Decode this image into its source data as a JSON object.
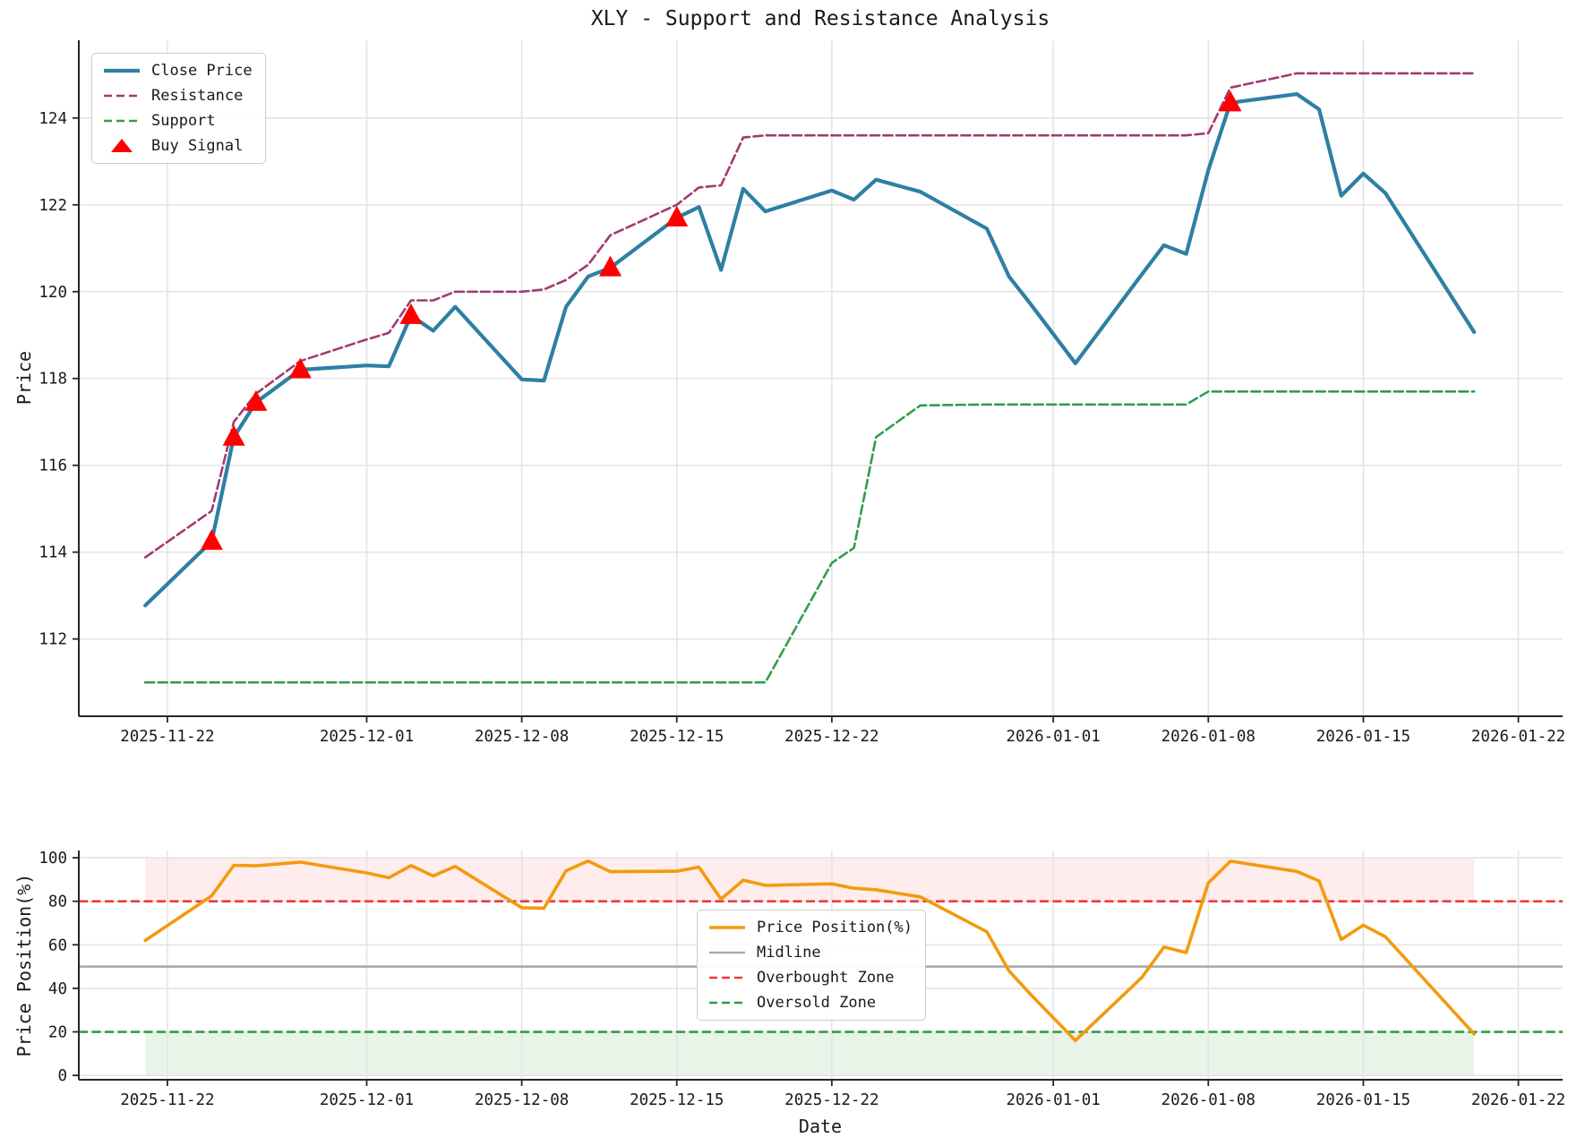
{
  "title": "XLY - Support and Resistance Analysis",
  "colors": {
    "close": "#2e7fa4",
    "resistance": "#a13a72",
    "support": "#2f9e4e",
    "buy_signal": "#ff0000",
    "position": "#f39a0d",
    "midline": "#aaaaaa",
    "overbought": "#ee3b3b",
    "oversold": "#2e9e46",
    "overbought_fill": "#ff6b6b",
    "oversold_fill": "#7cc47c",
    "grid": "#e4e4e4",
    "spine": "#262626"
  },
  "chart_data": [
    {
      "type": "line",
      "title": "XLY - Support and Resistance Analysis",
      "ylabel": "Price",
      "ylim": [
        110.2,
        125.8
      ],
      "y_ticks": [
        112,
        114,
        116,
        118,
        120,
        122,
        124
      ],
      "x_ticks": [
        "2025-11-22",
        "2025-12-01",
        "2025-12-08",
        "2025-12-15",
        "2025-12-22",
        "2026-01-01",
        "2026-01-08",
        "2026-01-15",
        "2026-01-22"
      ],
      "dates": [
        "2025-11-21",
        "2025-11-24",
        "2025-11-25",
        "2025-11-26",
        "2025-11-28",
        "2025-12-01",
        "2025-12-02",
        "2025-12-03",
        "2025-12-04",
        "2025-12-05",
        "2025-12-08",
        "2025-12-09",
        "2025-12-10",
        "2025-12-11",
        "2025-12-12",
        "2025-12-15",
        "2025-12-16",
        "2025-12-17",
        "2025-12-18",
        "2025-12-19",
        "2025-12-22",
        "2025-12-23",
        "2025-12-24",
        "2025-12-26",
        "2025-12-29",
        "2025-12-30",
        "2025-12-31",
        "2026-01-02",
        "2026-01-05",
        "2026-01-06",
        "2026-01-07",
        "2026-01-08",
        "2026-01-09",
        "2026-01-12",
        "2026-01-13",
        "2026-01-14",
        "2026-01-15",
        "2026-01-16",
        "2026-01-20"
      ],
      "series": [
        {
          "name": "Close Price",
          "style": "solid",
          "color": "#2e7fa4",
          "width": 4.2,
          "values": [
            112.77,
            114.25,
            116.65,
            117.45,
            118.2,
            118.3,
            118.28,
            119.45,
            119.1,
            119.65,
            117.98,
            117.95,
            119.65,
            120.35,
            120.55,
            121.7,
            121.95,
            120.5,
            122.37,
            121.85,
            122.33,
            122.12,
            122.58,
            122.3,
            121.45,
            120.35,
            119.7,
            118.35,
            120.4,
            121.07,
            120.87,
            122.8,
            124.35,
            124.55,
            124.2,
            122.21,
            122.72,
            122.27,
            119.07
          ]
        },
        {
          "name": "Resistance",
          "style": "dashed",
          "color": "#a13a72",
          "width": 2.6,
          "values": [
            113.88,
            114.95,
            117.0,
            117.65,
            118.4,
            118.9,
            119.05,
            119.8,
            119.8,
            120.0,
            120.0,
            120.05,
            120.27,
            120.62,
            121.3,
            122.0,
            122.4,
            122.45,
            123.55,
            123.6,
            123.6,
            123.6,
            123.6,
            123.6,
            123.6,
            123.6,
            123.6,
            123.6,
            123.6,
            123.6,
            123.6,
            123.65,
            124.7,
            125.03,
            125.03,
            125.03,
            125.03,
            125.03,
            125.03
          ]
        },
        {
          "name": "Support",
          "style": "dashed",
          "color": "#2f9e4e",
          "width": 2.6,
          "values": [
            111,
            111,
            111,
            111,
            111,
            111,
            111,
            111,
            111,
            111,
            111,
            111,
            111,
            111,
            111,
            111,
            111,
            111,
            111,
            111,
            113.75,
            114.1,
            116.65,
            117.38,
            117.4,
            117.4,
            117.4,
            117.4,
            117.4,
            117.4,
            117.4,
            117.7,
            117.7,
            117.7,
            117.7,
            117.7,
            117.7,
            117.7,
            117.7
          ]
        }
      ],
      "markers": {
        "name": "Buy Signal",
        "symbol": "triangle-up",
        "color": "#ff0000",
        "dates": [
          "2025-11-24",
          "2025-11-25",
          "2025-11-26",
          "2025-11-28",
          "2025-12-03",
          "2025-12-12",
          "2025-12-15",
          "2026-01-09"
        ],
        "values": [
          114.25,
          116.65,
          117.45,
          118.2,
          119.45,
          120.55,
          121.7,
          124.35
        ]
      },
      "legend": [
        {
          "label": "Close Price",
          "swatch": "line",
          "color": "#2e7fa4",
          "width": 4.2
        },
        {
          "label": "Resistance",
          "swatch": "dashed",
          "color": "#a13a72",
          "width": 2.6
        },
        {
          "label": "Support",
          "swatch": "dashed",
          "color": "#2f9e4e",
          "width": 2.6
        },
        {
          "label": "Buy Signal",
          "swatch": "triangle",
          "color": "#ff0000"
        }
      ],
      "legend_position": "upper left"
    },
    {
      "type": "line",
      "ylabel": "Price Position(%)",
      "xlabel": "Date",
      "ylim": [
        0,
        100
      ],
      "y_ticks": [
        0,
        20,
        40,
        60,
        80,
        100
      ],
      "x_ticks": [
        "2025-11-22",
        "2025-12-01",
        "2025-12-08",
        "2025-12-15",
        "2025-12-22",
        "2026-01-01",
        "2026-01-08",
        "2026-01-15",
        "2026-01-22"
      ],
      "dates": [
        "2025-11-21",
        "2025-11-24",
        "2025-11-25",
        "2025-11-26",
        "2025-11-28",
        "2025-12-01",
        "2025-12-02",
        "2025-12-03",
        "2025-12-04",
        "2025-12-05",
        "2025-12-08",
        "2025-12-09",
        "2025-12-10",
        "2025-12-11",
        "2025-12-12",
        "2025-12-15",
        "2025-12-16",
        "2025-12-17",
        "2025-12-18",
        "2025-12-19",
        "2025-12-22",
        "2025-12-23",
        "2025-12-24",
        "2025-12-26",
        "2025-12-29",
        "2025-12-30",
        "2025-12-31",
        "2026-01-02",
        "2026-01-05",
        "2026-01-06",
        "2026-01-07",
        "2026-01-08",
        "2026-01-09",
        "2026-01-12",
        "2026-01-13",
        "2026-01-14",
        "2026-01-15",
        "2026-01-16",
        "2026-01-20"
      ],
      "series": [
        {
          "name": "Price Position(%)",
          "style": "solid",
          "color": "#f39a0d",
          "width": 3.6,
          "values": [
            62,
            82.5,
            96.5,
            96.3,
            98,
            93,
            90.8,
            96.4,
            91.6,
            96,
            77,
            76.8,
            94,
            98.5,
            93.6,
            93.8,
            95.7,
            81,
            89.7,
            87.3,
            88,
            86,
            85.3,
            82,
            66,
            48,
            37,
            16,
            45,
            59,
            56.4,
            88.4,
            98.4,
            93.7,
            89.3,
            62.4,
            69,
            63.7,
            19
          ]
        }
      ],
      "reference_lines": [
        {
          "name": "Midline",
          "value": 50,
          "style": "solid",
          "color": "#aaaaaa",
          "width": 2.6
        },
        {
          "name": "Overbought Zone",
          "value": 80,
          "style": "dashed",
          "color": "#ee3b3b",
          "width": 2.6
        },
        {
          "name": "Oversold Zone",
          "value": 20,
          "style": "dashed",
          "color": "#2e9e46",
          "width": 2.6
        }
      ],
      "zones": [
        {
          "name": "overbought-zone",
          "range": [
            80,
            100
          ],
          "color": "#ff6b6b",
          "opacity": 0.13
        },
        {
          "name": "oversold-zone",
          "range": [
            0,
            20
          ],
          "color": "#7cc47c",
          "opacity": 0.18
        }
      ],
      "legend": [
        {
          "label": "Price Position(%)",
          "swatch": "line",
          "color": "#f39a0d",
          "width": 3.6
        },
        {
          "label": "Midline",
          "swatch": "line",
          "color": "#aaaaaa",
          "width": 2.6
        },
        {
          "label": "Overbought Zone",
          "swatch": "dashed",
          "color": "#ee3b3b",
          "width": 2.6
        },
        {
          "label": "Oversold Zone",
          "swatch": "dashed",
          "color": "#2e9e46",
          "width": 2.6
        }
      ],
      "legend_position": "center"
    }
  ]
}
